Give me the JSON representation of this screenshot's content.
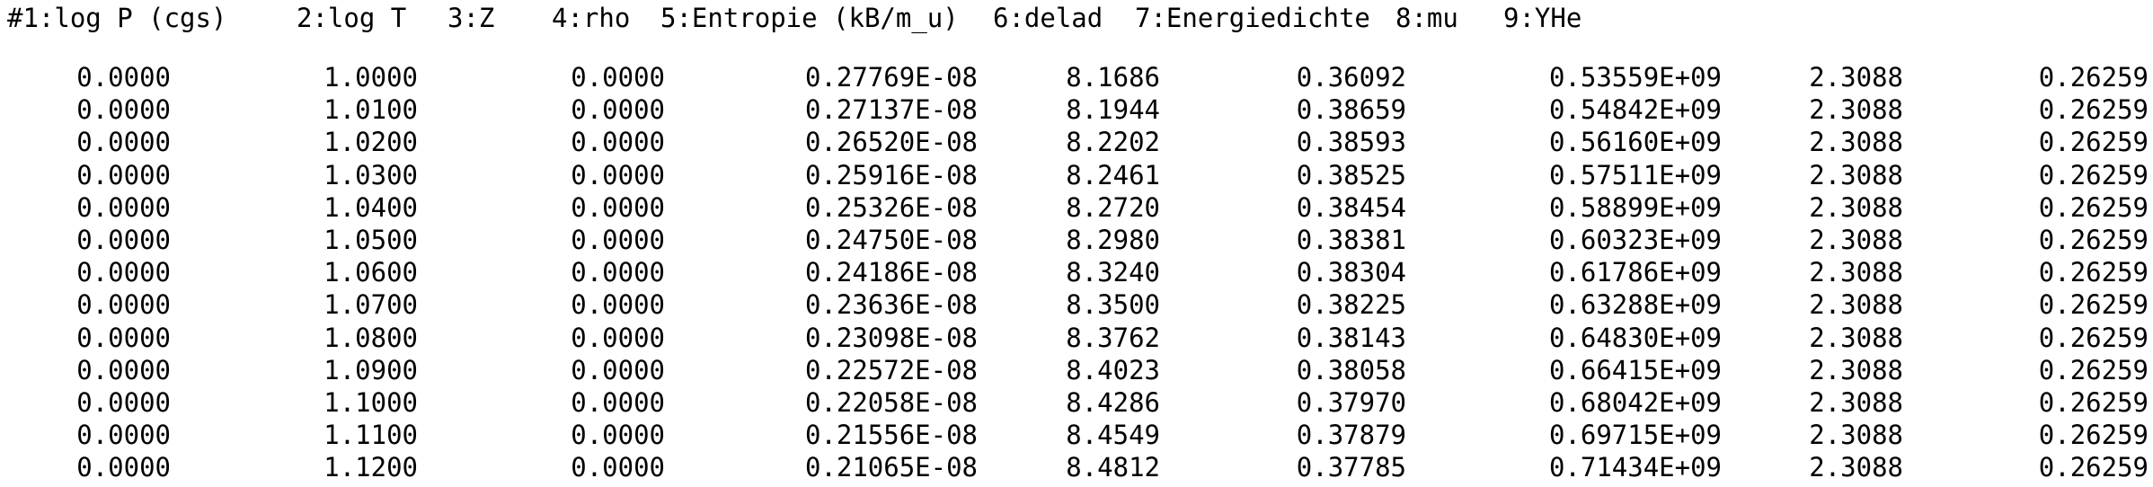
{
  "header": {
    "col1": "#1:log P (cgs)",
    "col2": "2:log T",
    "col3": "3:Z",
    "col4": "4:rho",
    "col5": "5:Entropie (kB/m_u)",
    "col6": "6:delad",
    "col7": "7:Energiedichte",
    "col8": "8:mu",
    "col9": "9:YHe"
  },
  "rows": [
    [
      "0.0000",
      "1.0000",
      "0.0000",
      "0.27769E-08",
      "8.1686",
      "0.36092",
      "0.53559E+09",
      "2.3088",
      "0.26259"
    ],
    [
      "0.0000",
      "1.0100",
      "0.0000",
      "0.27137E-08",
      "8.1944",
      "0.38659",
      "0.54842E+09",
      "2.3088",
      "0.26259"
    ],
    [
      "0.0000",
      "1.0200",
      "0.0000",
      "0.26520E-08",
      "8.2202",
      "0.38593",
      "0.56160E+09",
      "2.3088",
      "0.26259"
    ],
    [
      "0.0000",
      "1.0300",
      "0.0000",
      "0.25916E-08",
      "8.2461",
      "0.38525",
      "0.57511E+09",
      "2.3088",
      "0.26259"
    ],
    [
      "0.0000",
      "1.0400",
      "0.0000",
      "0.25326E-08",
      "8.2720",
      "0.38454",
      "0.58899E+09",
      "2.3088",
      "0.26259"
    ],
    [
      "0.0000",
      "1.0500",
      "0.0000",
      "0.24750E-08",
      "8.2980",
      "0.38381",
      "0.60323E+09",
      "2.3088",
      "0.26259"
    ],
    [
      "0.0000",
      "1.0600",
      "0.0000",
      "0.24186E-08",
      "8.3240",
      "0.38304",
      "0.61786E+09",
      "2.3088",
      "0.26259"
    ],
    [
      "0.0000",
      "1.0700",
      "0.0000",
      "0.23636E-08",
      "8.3500",
      "0.38225",
      "0.63288E+09",
      "2.3088",
      "0.26259"
    ],
    [
      "0.0000",
      "1.0800",
      "0.0000",
      "0.23098E-08",
      "8.3762",
      "0.38143",
      "0.64830E+09",
      "2.3088",
      "0.26259"
    ],
    [
      "0.0000",
      "1.0900",
      "0.0000",
      "0.22572E-08",
      "8.4023",
      "0.38058",
      "0.66415E+09",
      "2.3088",
      "0.26259"
    ],
    [
      "0.0000",
      "1.1000",
      "0.0000",
      "0.22058E-08",
      "8.4286",
      "0.37970",
      "0.68042E+09",
      "2.3088",
      "0.26259"
    ],
    [
      "0.0000",
      "1.1100",
      "0.0000",
      "0.21556E-08",
      "8.4549",
      "0.37879",
      "0.69715E+09",
      "2.3088",
      "0.26259"
    ],
    [
      "0.0000",
      "1.1200",
      "0.0000",
      "0.21065E-08",
      "8.4812",
      "0.37785",
      "0.71434E+09",
      "2.3088",
      "0.26259"
    ]
  ]
}
